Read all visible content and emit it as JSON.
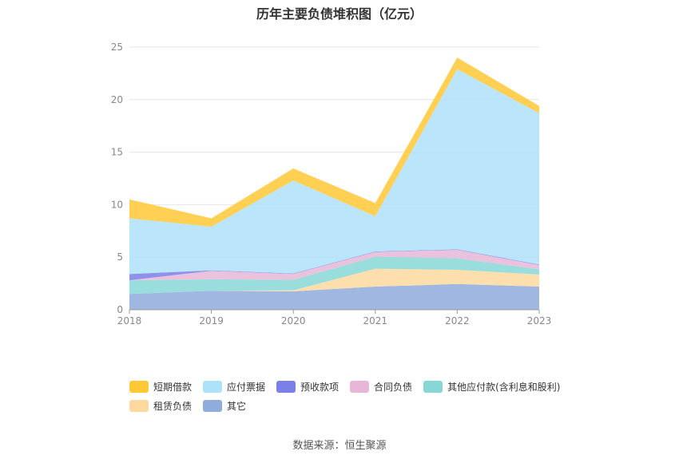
{
  "source_text": "数据来源：恒生聚源",
  "chart_data": {
    "type": "area",
    "stacked": true,
    "title": "历年主要负债堆积图（亿元）",
    "x": [
      "2018",
      "2019",
      "2020",
      "2021",
      "2022",
      "2023"
    ],
    "ylim": [
      0,
      25
    ],
    "yticks": [
      0,
      5,
      10,
      15,
      20,
      25
    ],
    "grid": true,
    "legend_position": "bottom",
    "series": [
      {
        "name": "其它",
        "color": "#8facdc",
        "values": [
          1.5,
          1.8,
          1.75,
          2.2,
          2.45,
          2.2
        ]
      },
      {
        "name": "租赁负债",
        "color": "#fdd9a0",
        "values": [
          0.0,
          0.0,
          0.1,
          1.7,
          1.35,
          1.15
        ]
      },
      {
        "name": "其他应付款(含利息和股利)",
        "color": "#87d7d7",
        "values": [
          1.3,
          1.1,
          1.0,
          1.15,
          1.1,
          0.5
        ]
      },
      {
        "name": "合同负债",
        "color": "#e8b7d8",
        "values": [
          0.0,
          0.8,
          0.55,
          0.45,
          0.8,
          0.4
        ]
      },
      {
        "name": "预收款项",
        "color": "#7b7fe8",
        "values": [
          0.6,
          0.05,
          0.05,
          0.05,
          0.05,
          0.05
        ]
      },
      {
        "name": "应付票据",
        "color": "#aee1fa",
        "values": [
          5.3,
          4.15,
          8.85,
          3.35,
          17.15,
          14.4
        ]
      },
      {
        "name": "短期借款",
        "color": "#ffc836",
        "values": [
          1.8,
          0.8,
          1.15,
          1.25,
          1.1,
          0.7
        ]
      }
    ],
    "legend_rows": [
      [
        "短期借款",
        "应付票据",
        "预收款项",
        "合同负债",
        "其他应付款(含利息和股利)"
      ],
      [
        "租赁负债",
        "其它"
      ]
    ]
  }
}
